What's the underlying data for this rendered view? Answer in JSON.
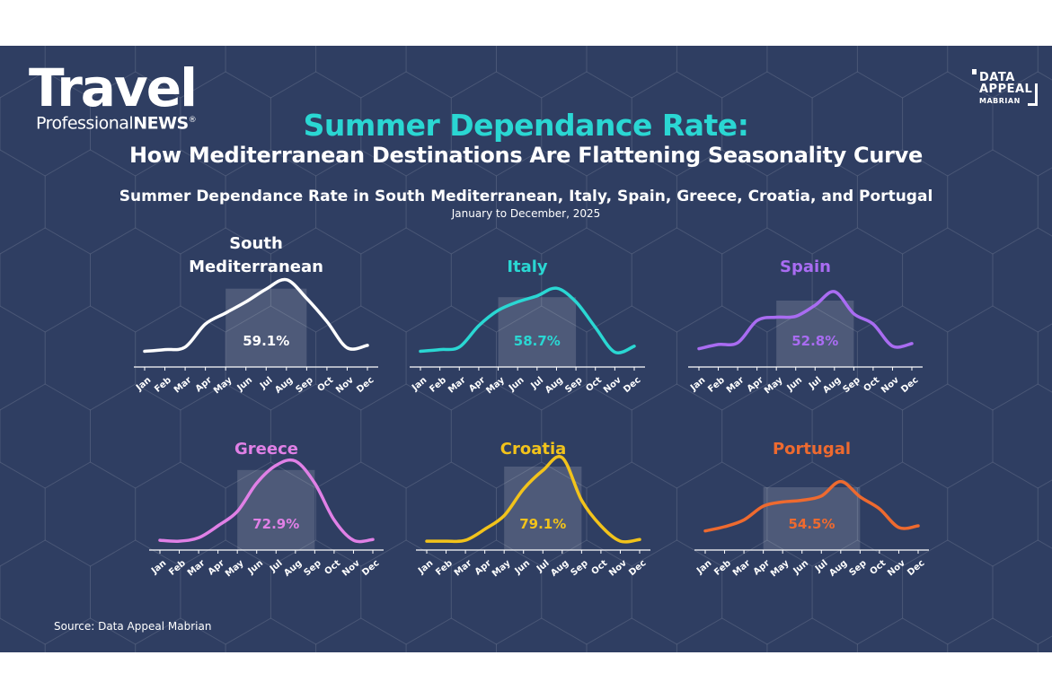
{
  "logo": {
    "main": "Travel",
    "sub_prefix": "Professional",
    "sub_bold": "NEWS",
    "mark": "®"
  },
  "brand": {
    "line1": "DATA",
    "line2": "APPEAL",
    "line3": "MABRIAN"
  },
  "header": {
    "title": "Summer Dependance Rate:",
    "subtitle": "How Mediterranean Destinations Are Flattening Seasonality Curve",
    "chart_title": "Summer Dependance Rate in South Mediterranean, Italy, Spain, Greece, Croatia, and Portugal",
    "period": "January to December, 2025"
  },
  "source": "Source: Data Appeal Mabrian",
  "colors": {
    "background": "#2f3e62",
    "accent": "#2ad7d3"
  },
  "chart_data": [
    {
      "type": "line",
      "title": "South Mediterranean",
      "color": "#ffffff",
      "summer_dependance_rate": "59.1%",
      "x": [
        "Jan",
        "Feb",
        "Mar",
        "Apr",
        "May",
        "Jun",
        "Jul",
        "Aug",
        "Sep",
        "Oct",
        "Nov",
        "Dec"
      ],
      "values": [
        1.0,
        1.2,
        1.5,
        4.2,
        5.5,
        6.8,
        8.3,
        9.4,
        7.2,
        4.5,
        1.4,
        1.7
      ],
      "highlight": [
        "May",
        "Sep"
      ]
    },
    {
      "type": "line",
      "title": "Italy",
      "color": "#2ad7d3",
      "summer_dependance_rate": "58.7%",
      "x": [
        "Jan",
        "Feb",
        "Mar",
        "Apr",
        "May",
        "Jun",
        "Jul",
        "Aug",
        "Sep",
        "Oct",
        "Nov",
        "Dec"
      ],
      "values": [
        1.0,
        1.2,
        1.5,
        4.0,
        5.8,
        6.8,
        7.5,
        8.4,
        6.8,
        3.8,
        0.9,
        1.6
      ],
      "highlight": [
        "May",
        "Sep"
      ]
    },
    {
      "type": "line",
      "title": "Spain",
      "color": "#a96cf2",
      "summer_dependance_rate": "52.8%",
      "x": [
        "Jan",
        "Feb",
        "Mar",
        "Apr",
        "May",
        "Jun",
        "Jul",
        "Aug",
        "Sep",
        "Oct",
        "Nov",
        "Dec"
      ],
      "values": [
        1.3,
        1.8,
        2.0,
        4.6,
        5.0,
        5.1,
        6.4,
        8.0,
        5.4,
        4.2,
        1.6,
        1.9
      ],
      "highlight": [
        "May",
        "Sep"
      ]
    },
    {
      "type": "line",
      "title": "Greece",
      "color": "#e080e6",
      "summer_dependance_rate": "72.9%",
      "x": [
        "Jan",
        "Feb",
        "Mar",
        "Apr",
        "May",
        "Jun",
        "Jul",
        "Aug",
        "Sep",
        "Oct",
        "Nov",
        "Dec"
      ],
      "values": [
        0.3,
        0.2,
        0.6,
        2.0,
        3.7,
        7.0,
        9.1,
        9.6,
        7.0,
        2.7,
        0.3,
        0.4
      ],
      "highlight": [
        "May",
        "Sep"
      ]
    },
    {
      "type": "line",
      "title": "Croatia",
      "color": "#f2c31b",
      "summer_dependance_rate": "79.1%",
      "x": [
        "Jan",
        "Feb",
        "Mar",
        "Apr",
        "May",
        "Jun",
        "Jul",
        "Aug",
        "Sep",
        "Oct",
        "Nov",
        "Dec"
      ],
      "values": [
        0.2,
        0.2,
        0.3,
        1.6,
        3.2,
        6.3,
        8.5,
        10.0,
        5.0,
        2.0,
        0.2,
        0.4
      ],
      "highlight": [
        "May",
        "Sep"
      ]
    },
    {
      "type": "line",
      "title": "Portugal",
      "color": "#ee6a2f",
      "summer_dependance_rate": "54.5%",
      "x": [
        "Jan",
        "Feb",
        "Mar",
        "Apr",
        "May",
        "Jun",
        "Jul",
        "Aug",
        "Sep",
        "Oct",
        "Nov",
        "Dec"
      ],
      "values": [
        1.4,
        1.9,
        2.7,
        4.3,
        4.8,
        5.0,
        5.5,
        7.2,
        5.4,
        4.0,
        1.8,
        2.0
      ],
      "highlight": [
        "Apr",
        "Sep"
      ]
    }
  ]
}
